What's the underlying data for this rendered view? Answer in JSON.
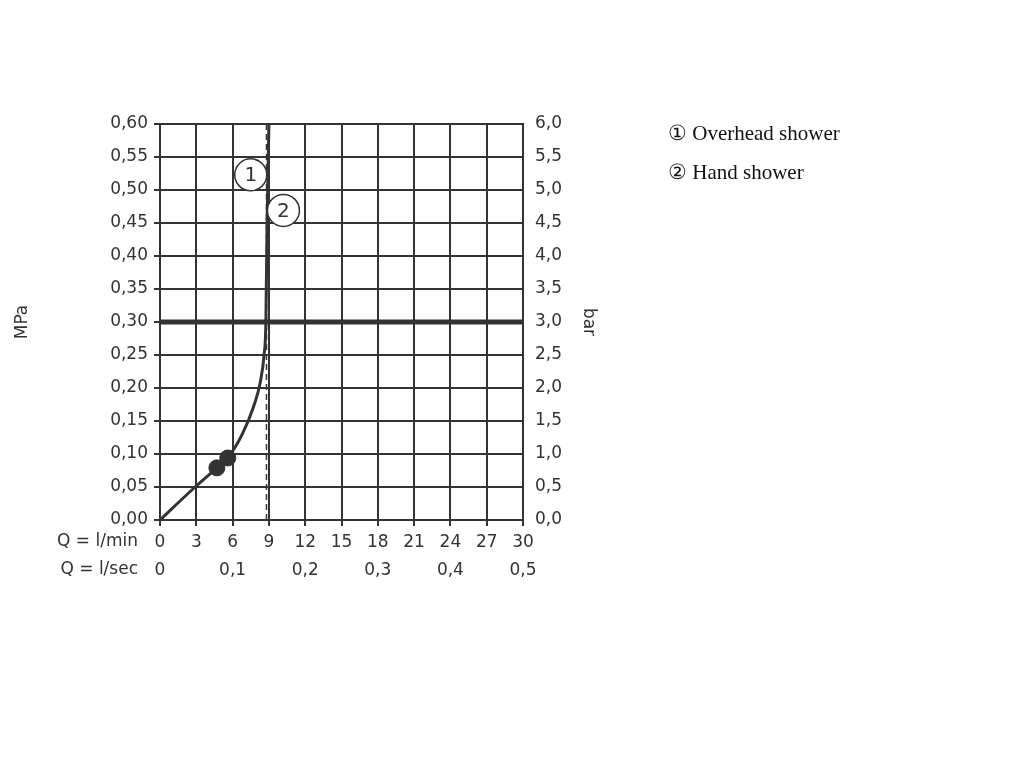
{
  "chart_data": {
    "type": "line",
    "xlabel": "Q = l/min",
    "x2label": "Q = l/sec",
    "ylabel": "MPa",
    "y2label": "bar",
    "xlim": [
      0,
      30
    ],
    "xticks": [
      0,
      3,
      6,
      9,
      12,
      15,
      18,
      21,
      24,
      27,
      30
    ],
    "x2lim": [
      0,
      0.5
    ],
    "x2ticks": [
      0,
      {
        "value": 0.1,
        "label": "0,1"
      },
      {
        "value": 0.2,
        "label": "0,2"
      },
      {
        "value": 0.3,
        "label": "0,3"
      },
      {
        "value": 0.4,
        "label": "0,4"
      },
      {
        "value": 0.5,
        "label": "0,5"
      }
    ],
    "ylim": [
      0,
      0.6
    ],
    "yticks": [
      {
        "value": 0,
        "label": "0,00"
      },
      {
        "value": 0.05,
        "label": "0,05"
      },
      {
        "value": 0.1,
        "label": "0,10"
      },
      {
        "value": 0.15,
        "label": "0,15"
      },
      {
        "value": 0.2,
        "label": "0,20"
      },
      {
        "value": 0.25,
        "label": "0,25"
      },
      {
        "value": 0.3,
        "label": "0,30"
      },
      {
        "value": 0.35,
        "label": "0,35"
      },
      {
        "value": 0.4,
        "label": "0,40"
      },
      {
        "value": 0.45,
        "label": "0,45"
      },
      {
        "value": 0.5,
        "label": "0,50"
      },
      {
        "value": 0.55,
        "label": "0,55"
      },
      {
        "value": 0.6,
        "label": "0,60"
      }
    ],
    "y2lim": [
      0,
      6
    ],
    "y2ticks": [
      {
        "value": 0,
        "label": "0,0"
      },
      {
        "value": 0.5,
        "label": "0,5"
      },
      {
        "value": 1,
        "label": "1,0"
      },
      {
        "value": 1.5,
        "label": "1,5"
      },
      {
        "value": 2,
        "label": "2,0"
      },
      {
        "value": 2.5,
        "label": "2,5"
      },
      {
        "value": 3,
        "label": "3,0"
      },
      {
        "value": 3.5,
        "label": "3,5"
      },
      {
        "value": 4,
        "label": "4,0"
      },
      {
        "value": 4.5,
        "label": "4,5"
      },
      {
        "value": 5,
        "label": "5,0"
      },
      {
        "value": 5.5,
        "label": "5,5"
      },
      {
        "value": 6,
        "label": "6,0"
      }
    ],
    "grid": true,
    "legend": false,
    "series": [
      {
        "type": "line",
        "color": "#333333",
        "marker": "none",
        "x": [
          0,
          2.9,
          4.7,
          5.6,
          6.8,
          7.7,
          8.3,
          8.6,
          8.75,
          8.85,
          9.0
        ],
        "values": [
          0,
          0.05,
          0.079,
          0.094,
          0.13,
          0.17,
          0.21,
          0.25,
          0.3,
          0.45,
          0.6
        ]
      },
      {
        "type": "scatter",
        "color": "#333333",
        "marker": "circle",
        "x": [
          4.7,
          5.6
        ],
        "values": [
          0.079,
          0.094
        ]
      }
    ],
    "ref_lines": [
      {
        "axis": "y",
        "value": 0.3,
        "color": "#333333",
        "line_style": "solid"
      },
      {
        "axis": "x",
        "value": 8.8,
        "color": "#333333",
        "line_style": "dashed"
      }
    ],
    "annotations": [
      {
        "text": "1",
        "x": 7.5,
        "y": 0.523
      },
      {
        "text": "2",
        "x": 10.2,
        "y": 0.469
      },
      "① Overhead shower",
      "② Hand shower"
    ]
  }
}
